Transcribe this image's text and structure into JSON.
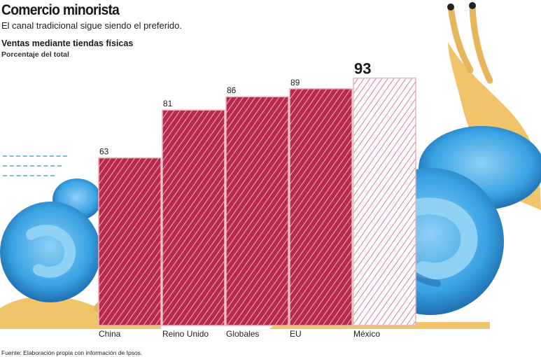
{
  "header": {
    "title": "Comercio minorista",
    "subtitle": "El canal tradicional sigue siendo el preferido."
  },
  "chart_heading": {
    "title": "Ventas mediante tiendas físicas",
    "unit": "Porcentaje del total"
  },
  "footer": {
    "source": "Fuente: Elaboración propia con información de Ipsos."
  },
  "colors": {
    "bar": "#b8294a",
    "bar_highlight": "#e8b4be",
    "shell": "#3aa3e3",
    "snail_body": "#f0c46a"
  },
  "chart_data": {
    "type": "bar",
    "categories": [
      "China",
      "Reino Unido",
      "Globales",
      "EU",
      "México"
    ],
    "values": [
      63,
      81,
      86,
      89,
      93
    ],
    "value_labels": [
      "63",
      "81",
      "86",
      "89",
      "93"
    ],
    "highlight_index": 4,
    "ylim": [
      0,
      100
    ],
    "grid": false
  }
}
